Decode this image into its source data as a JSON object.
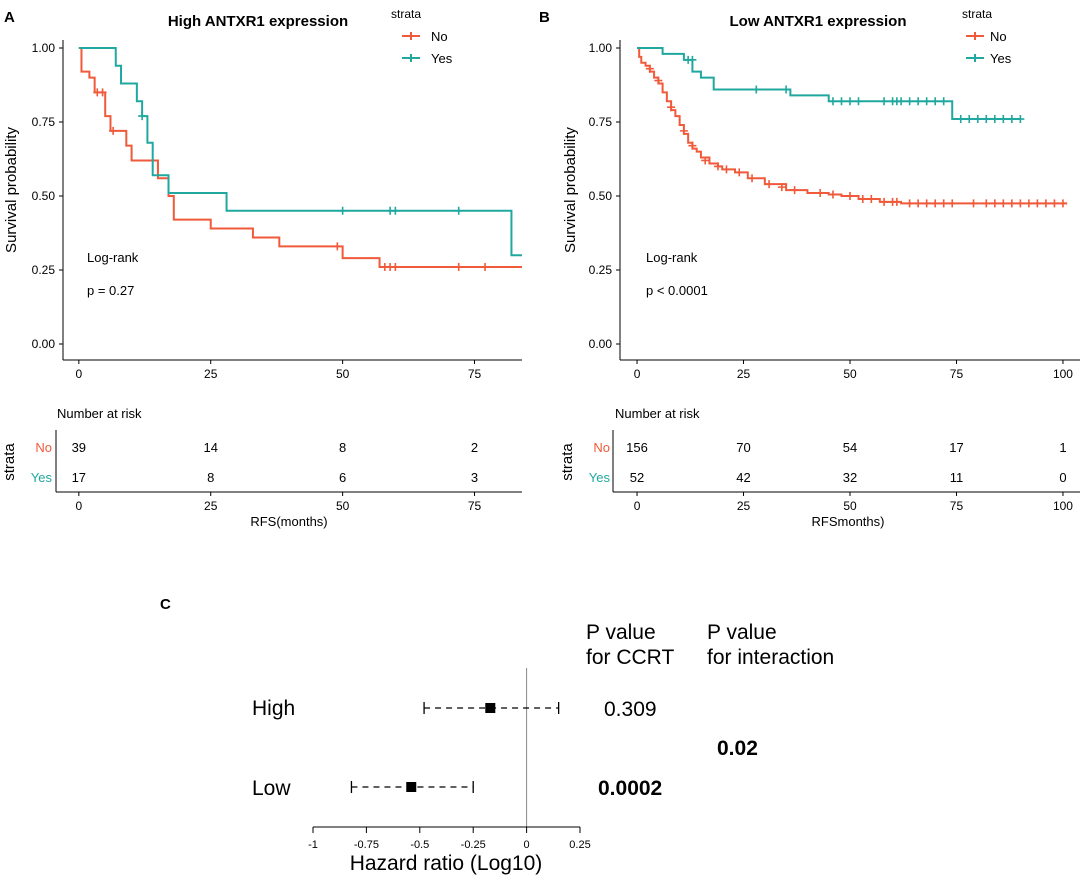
{
  "colors": {
    "no": "#F05A3A",
    "yes": "#20A8A0",
    "axis": "#000000",
    "vline": "#888888"
  },
  "chart_data": [
    {
      "id": "A",
      "type": "line",
      "panel_label": "A",
      "title": "High ANTXR1 expression",
      "xlabel": "RFS(months)",
      "ylabel": "Survival probability",
      "xlim": [
        -3,
        84
      ],
      "ylim": [
        0,
        1
      ],
      "xticks": [
        0,
        25,
        50,
        75
      ],
      "yticks": [
        0,
        0.25,
        0.5,
        0.75,
        1
      ],
      "yticklabels": [
        "0.00",
        "0.25",
        "0.50",
        "0.75",
        "1.00"
      ],
      "legend_title": "strata",
      "legend_labels": [
        "No",
        "Yes"
      ],
      "annotation_logrank": "Log-rank",
      "annotation_p": "p = 0.27",
      "series": [
        {
          "name": "No",
          "steps": [
            [
              0,
              1.0
            ],
            [
              0.5,
              0.92
            ],
            [
              2,
              0.9
            ],
            [
              3,
              0.85
            ],
            [
              5,
              0.77
            ],
            [
              6,
              0.72
            ],
            [
              9,
              0.67
            ],
            [
              10,
              0.62
            ],
            [
              15,
              0.56
            ],
            [
              17,
              0.5
            ],
            [
              18,
              0.42
            ],
            [
              25,
              0.39
            ],
            [
              33,
              0.36
            ],
            [
              38,
              0.33
            ],
            [
              50,
              0.29
            ],
            [
              57,
              0.26
            ],
            [
              84,
              0.26
            ]
          ],
          "censors": [
            [
              3.5,
              0.85
            ],
            [
              4.5,
              0.85
            ],
            [
              6.5,
              0.72
            ],
            [
              49,
              0.33
            ],
            [
              58,
              0.26
            ],
            [
              59,
              0.26
            ],
            [
              60,
              0.26
            ],
            [
              72,
              0.26
            ],
            [
              77,
              0.26
            ]
          ]
        },
        {
          "name": "Yes",
          "steps": [
            [
              0,
              1.0
            ],
            [
              7,
              0.94
            ],
            [
              8,
              0.88
            ],
            [
              11,
              0.82
            ],
            [
              12,
              0.77
            ],
            [
              13,
              0.68
            ],
            [
              14,
              0.57
            ],
            [
              17,
              0.51
            ],
            [
              28,
              0.45
            ],
            [
              82,
              0.3
            ],
            [
              84,
              0.3
            ]
          ],
          "censors": [
            [
              12,
              0.77
            ],
            [
              50,
              0.45
            ],
            [
              59,
              0.45
            ],
            [
              60,
              0.45
            ],
            [
              72,
              0.45
            ]
          ]
        }
      ],
      "risk_table": {
        "title": "Number at risk",
        "axis_label": "strata",
        "xlabel": "RFS(months)",
        "times": [
          0,
          25,
          50,
          75
        ],
        "rows": [
          {
            "name": "No",
            "counts": [
              "39",
              "14",
              "8",
              "2"
            ]
          },
          {
            "name": "Yes",
            "counts": [
              "17",
              "8",
              "6",
              "3"
            ]
          }
        ]
      }
    },
    {
      "id": "B",
      "type": "line",
      "panel_label": "B",
      "title": "Low ANTXR1 expression",
      "xlabel": "RFSmonths)",
      "ylabel": "Survival probability",
      "xlim": [
        -4,
        104
      ],
      "ylim": [
        0,
        1
      ],
      "xticks": [
        0,
        25,
        50,
        75,
        100
      ],
      "yticks": [
        0,
        0.25,
        0.5,
        0.75,
        1
      ],
      "yticklabels": [
        "0.00",
        "0.25",
        "0.50",
        "0.75",
        "1.00"
      ],
      "legend_title": "strata",
      "legend_labels": [
        "No",
        "Yes"
      ],
      "annotation_logrank": "Log-rank",
      "annotation_p": "p < 0.0001",
      "series": [
        {
          "name": "No",
          "steps": [
            [
              0,
              1.0
            ],
            [
              0.5,
              0.97
            ],
            [
              1,
              0.95
            ],
            [
              2,
              0.94
            ],
            [
              3,
              0.92
            ],
            [
              4,
              0.9
            ],
            [
              5,
              0.88
            ],
            [
              6,
              0.85
            ],
            [
              7,
              0.82
            ],
            [
              8,
              0.79
            ],
            [
              9,
              0.77
            ],
            [
              10,
              0.74
            ],
            [
              11,
              0.71
            ],
            [
              12,
              0.68
            ],
            [
              13,
              0.66
            ],
            [
              14,
              0.65
            ],
            [
              15,
              0.63
            ],
            [
              17,
              0.61
            ],
            [
              19,
              0.6
            ],
            [
              20,
              0.59
            ],
            [
              23,
              0.58
            ],
            [
              26,
              0.56
            ],
            [
              30,
              0.54
            ],
            [
              35,
              0.52
            ],
            [
              40,
              0.51
            ],
            [
              45,
              0.505
            ],
            [
              48,
              0.5
            ],
            [
              52,
              0.49
            ],
            [
              57,
              0.48
            ],
            [
              62,
              0.475
            ],
            [
              101,
              0.475
            ]
          ],
          "censors": [
            [
              3,
              0.93
            ],
            [
              5,
              0.89
            ],
            [
              8,
              0.8
            ],
            [
              11,
              0.72
            ],
            [
              13,
              0.67
            ],
            [
              16,
              0.62
            ],
            [
              19,
              0.6
            ],
            [
              21,
              0.59
            ],
            [
              24,
              0.58
            ],
            [
              27,
              0.56
            ],
            [
              31,
              0.54
            ],
            [
              34,
              0.53
            ],
            [
              37,
              0.52
            ],
            [
              43,
              0.51
            ],
            [
              46,
              0.505
            ],
            [
              50,
              0.5
            ],
            [
              53,
              0.49
            ],
            [
              55,
              0.49
            ],
            [
              58,
              0.48
            ],
            [
              60,
              0.48
            ],
            [
              61,
              0.48
            ],
            [
              64,
              0.475
            ],
            [
              66,
              0.475
            ],
            [
              68,
              0.475
            ],
            [
              70,
              0.475
            ],
            [
              72,
              0.475
            ],
            [
              74,
              0.475
            ],
            [
              79,
              0.475
            ],
            [
              82,
              0.475
            ],
            [
              84,
              0.475
            ],
            [
              86,
              0.475
            ],
            [
              88,
              0.475
            ],
            [
              90,
              0.475
            ],
            [
              92,
              0.475
            ],
            [
              94,
              0.475
            ],
            [
              96,
              0.475
            ],
            [
              98,
              0.475
            ],
            [
              100,
              0.475
            ]
          ]
        },
        {
          "name": "Yes",
          "steps": [
            [
              0,
              1.0
            ],
            [
              6,
              0.98
            ],
            [
              11,
              0.96
            ],
            [
              13,
              0.92
            ],
            [
              15,
              0.9
            ],
            [
              18,
              0.86
            ],
            [
              36,
              0.84
            ],
            [
              45,
              0.82
            ],
            [
              74,
              0.76
            ],
            [
              90,
              0.76
            ]
          ],
          "censors": [
            [
              12,
              0.96
            ],
            [
              13,
              0.96
            ],
            [
              28,
              0.86
            ],
            [
              35,
              0.86
            ],
            [
              46,
              0.82
            ],
            [
              48,
              0.82
            ],
            [
              50,
              0.82
            ],
            [
              52,
              0.82
            ],
            [
              58,
              0.82
            ],
            [
              60,
              0.82
            ],
            [
              61,
              0.82
            ],
            [
              62,
              0.82
            ],
            [
              64,
              0.82
            ],
            [
              66,
              0.82
            ],
            [
              68,
              0.82
            ],
            [
              70,
              0.82
            ],
            [
              72,
              0.82
            ],
            [
              76,
              0.76
            ],
            [
              78,
              0.76
            ],
            [
              80,
              0.76
            ],
            [
              82,
              0.76
            ],
            [
              84,
              0.76
            ],
            [
              86,
              0.76
            ],
            [
              88,
              0.76
            ],
            [
              90,
              0.76
            ]
          ]
        }
      ],
      "risk_table": {
        "title": "Number at risk",
        "axis_label": "strata",
        "xlabel": "RFSmonths)",
        "times": [
          0,
          25,
          50,
          75,
          100
        ],
        "rows": [
          {
            "name": "No",
            "counts": [
              "156",
              "70",
              "54",
              "17",
              "1"
            ]
          },
          {
            "name": "Yes",
            "counts": [
              "52",
              "42",
              "32",
              "11",
              "0"
            ]
          }
        ]
      }
    },
    {
      "id": "C",
      "type": "scatter",
      "panel_label": "C",
      "xlabel": "Hazard ratio (Log10)",
      "xlim": [
        -1,
        0.25
      ],
      "xticks": [
        -1,
        -0.75,
        -0.5,
        -0.25,
        0,
        0.25
      ],
      "xticklabels": [
        "-1",
        "-0.75",
        "-0.5",
        "-0.25",
        "0",
        "0.25"
      ],
      "col1_header": [
        "P value",
        "for CCRT"
      ],
      "col2_header": [
        "P value",
        "for interaction"
      ],
      "interaction_p": "0.02",
      "rows": [
        {
          "label": "High",
          "estimate": -0.17,
          "lower": -0.48,
          "upper": 0.15,
          "p_value": "0.309",
          "p_bold": false
        },
        {
          "label": "Low",
          "estimate": -0.54,
          "lower": -0.82,
          "upper": -0.25,
          "p_value": "0.0002",
          "p_bold": true
        }
      ]
    }
  ]
}
